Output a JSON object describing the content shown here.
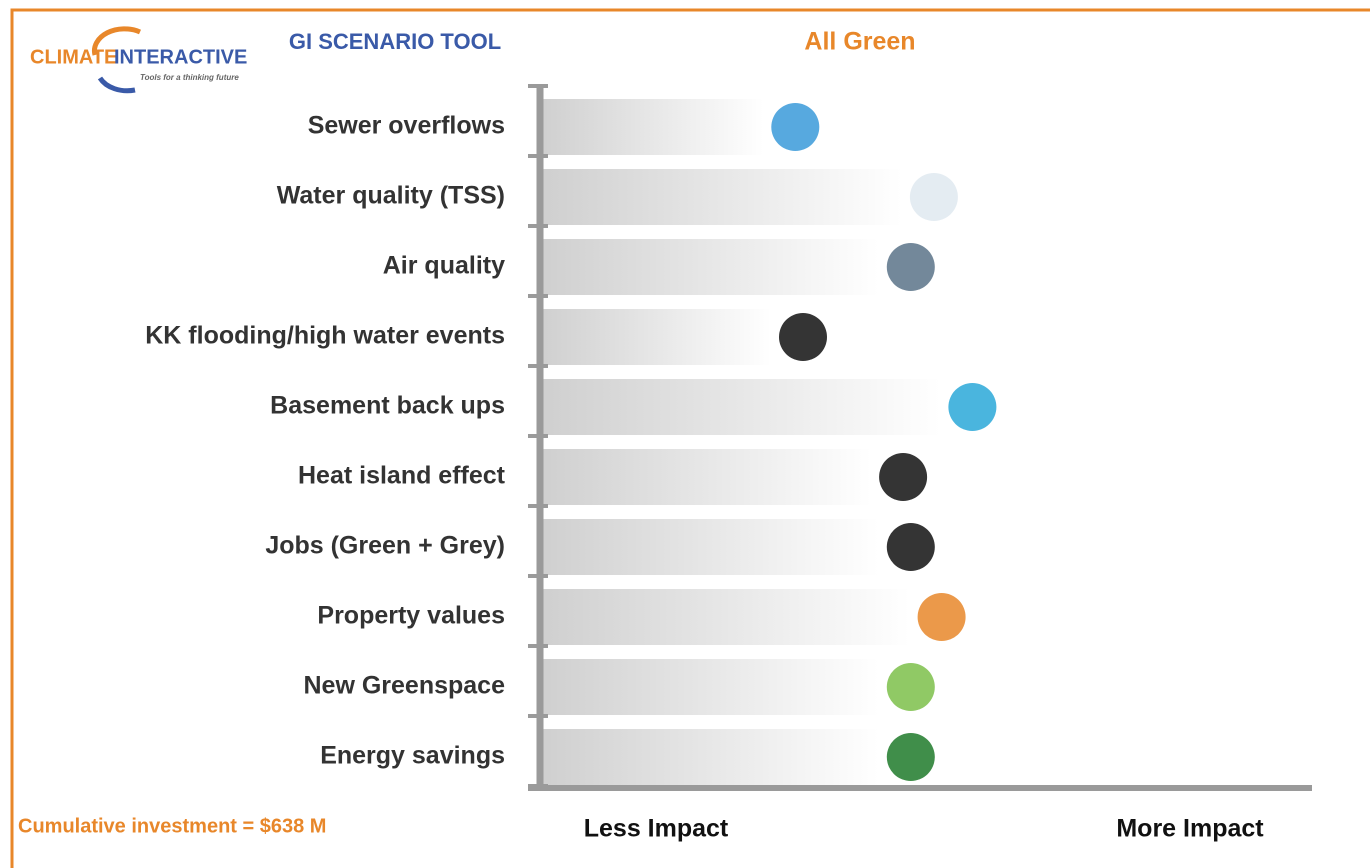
{
  "logo": {
    "word1": "CLIMATE",
    "word2": "INTERACTIVE",
    "tagline": "Tools for a thinking future"
  },
  "tool_name": "GI SCENARIO TOOL",
  "chart_data": {
    "type": "bar",
    "orientation": "horizontal",
    "title": "All Green",
    "categories": [
      "Sewer overflows",
      "Water quality (TSS)",
      "Air quality",
      "KK flooding/high water events",
      "Basement back ups",
      "Heat island effect",
      "Jobs (Green + Grey)",
      "Property values",
      "New Greenspace",
      "Energy savings"
    ],
    "values": [
      29,
      47,
      44,
      30,
      52,
      43,
      44,
      48,
      44,
      44
    ],
    "xlim": [
      0,
      100
    ],
    "x_min_label": "Less Impact",
    "x_max_label": "More Impact",
    "color": "#c8c8c8"
  },
  "footer": "Cumulative investment = $638 M"
}
